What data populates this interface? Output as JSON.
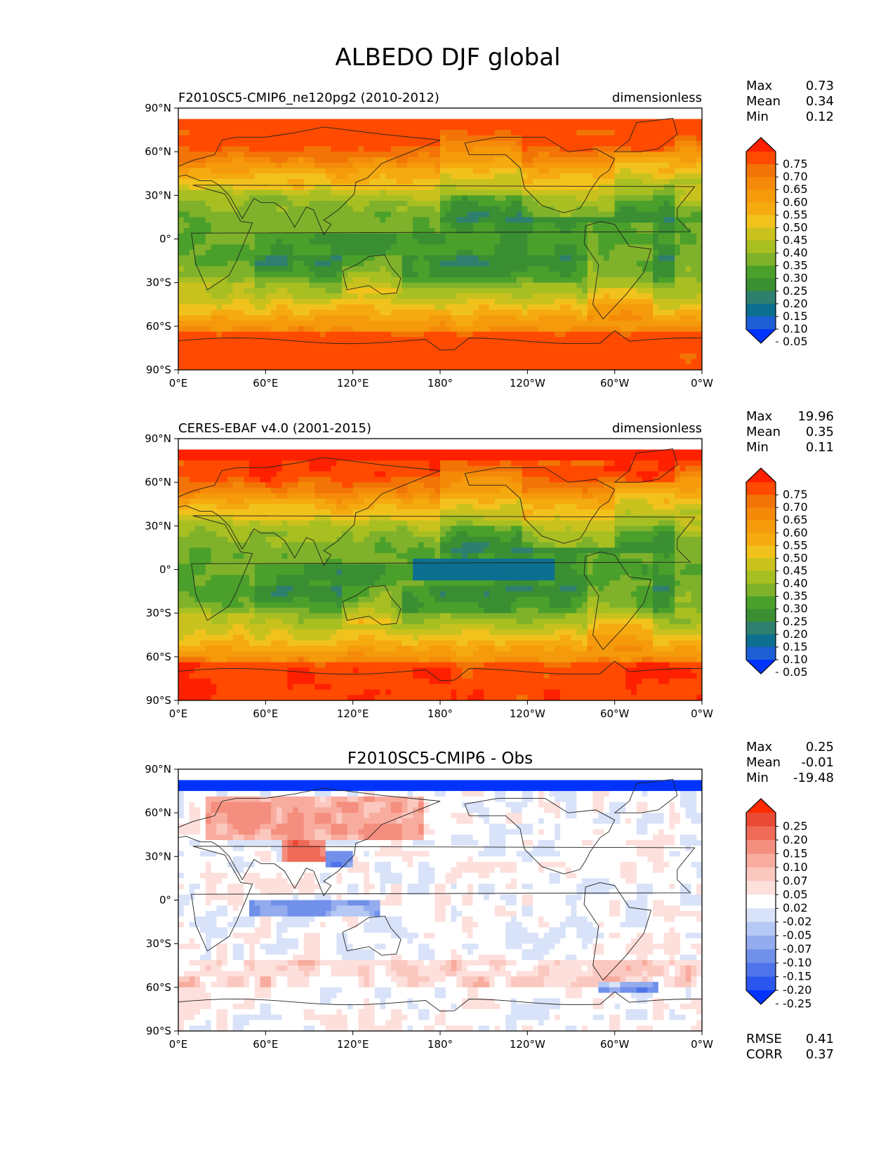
{
  "title": "ALBEDO DJF global",
  "lat_ticks": [
    "90°N",
    "60°N",
    "30°N",
    "0°",
    "30°S",
    "60°S",
    "90°S"
  ],
  "lon_ticks": [
    "0°E",
    "60°E",
    "120°E",
    "180°",
    "120°W",
    "60°W",
    "0°W"
  ],
  "panels": [
    {
      "left_title": "F2010SC5-CMIP6_ne120pg2 (2010-2012)",
      "center_title": "",
      "units": "dimensionless",
      "stats": [
        {
          "label": "Max",
          "value": "0.73"
        },
        {
          "label": "Mean",
          "value": "0.34"
        },
        {
          "label": "Min",
          "value": "0.12"
        }
      ],
      "colorbar_labels": [
        "0.75",
        "0.70",
        "0.65",
        "0.60",
        "0.55",
        "0.50",
        "0.45",
        "0.40",
        "0.35",
        "0.30",
        "0.25",
        "0.20",
        "0.15",
        "0.10",
        "0.05"
      ],
      "field": "model"
    },
    {
      "left_title": "CERES-EBAF v4.0 (2001-2015)",
      "center_title": "",
      "units": "dimensionless",
      "stats": [
        {
          "label": "Max",
          "value": "19.96"
        },
        {
          "label": "Mean",
          "value": "0.35"
        },
        {
          "label": "Min",
          "value": "0.11"
        }
      ],
      "colorbar_labels": [
        "0.75",
        "0.70",
        "0.65",
        "0.60",
        "0.55",
        "0.50",
        "0.45",
        "0.40",
        "0.35",
        "0.30",
        "0.25",
        "0.20",
        "0.15",
        "0.10",
        "0.05"
      ],
      "field": "obs"
    },
    {
      "left_title": "",
      "center_title": "F2010SC5-CMIP6 - Obs",
      "units": "",
      "stats": [
        {
          "label": "Max",
          "value": "0.25"
        },
        {
          "label": "Mean",
          "value": "-0.01"
        },
        {
          "label": "Min",
          "value": "-19.48"
        }
      ],
      "colorbar_labels": [
        "0.25",
        "0.20",
        "0.15",
        "0.10",
        "0.07",
        "0.05",
        "0.02",
        "-0.02",
        "-0.05",
        "-0.07",
        "-0.10",
        "-0.15",
        "-0.20",
        "-0.25"
      ],
      "extra_stats": [
        {
          "label": "RMSE",
          "value": "0.41"
        },
        {
          "label": "CORR",
          "value": "0.37"
        }
      ],
      "field": "diff"
    }
  ],
  "colors": {
    "albedo_scale": [
      "#0033ff",
      "#1f5fd6",
      "#0d6f8f",
      "#2f7f6f",
      "#3a8f32",
      "#4aa02a",
      "#7fb22a",
      "#a8bf22",
      "#c9c21e",
      "#f2c21c",
      "#f5aa10",
      "#f59a0a",
      "#f58a08",
      "#f27406",
      "#ff4a00",
      "#ff2000"
    ],
    "diff_scale": [
      "#0033ff",
      "#2a55ee",
      "#4f74ea",
      "#7090ea",
      "#94acee",
      "#b6c8f4",
      "#d8e2f8",
      "#ffffff",
      "#fde0dc",
      "#fbc8c0",
      "#f8ac9e",
      "#f48e7e",
      "#f06a58",
      "#ea4a34",
      "#ff2a00"
    ]
  }
}
